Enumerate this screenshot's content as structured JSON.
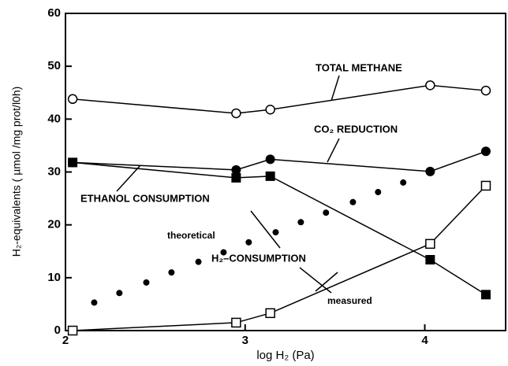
{
  "chart_data": {
    "type": "line",
    "x_label": "log H₂  (Pa)",
    "y_label": "H₂-equivalents ( µmol /mg prot/l0h)",
    "xlim": [
      2,
      4.45
    ],
    "xticks": [
      2,
      3,
      4
    ],
    "ylim": [
      0,
      60
    ],
    "yticks": [
      0,
      10,
      20,
      30,
      40,
      50,
      60
    ],
    "series": [
      {
        "name": "TOTAL METHANE",
        "color": "#000000",
        "marker": "open-circle",
        "line": true,
        "x": [
          2.04,
          2.95,
          3.14,
          4.03,
          4.34
        ],
        "values": [
          43.8,
          41.1,
          41.8,
          46.4,
          45.4
        ]
      },
      {
        "name": "CO₂ REDUCTION",
        "color": "#000000",
        "marker": "filled-circle",
        "line": true,
        "x": [
          2.04,
          2.95,
          3.14,
          4.03,
          4.34
        ],
        "values": [
          31.8,
          30.4,
          32.4,
          30.1,
          33.9
        ]
      },
      {
        "name": "ETHANOL CONSUMPTION",
        "color": "#000000",
        "marker": "filled-square",
        "line": true,
        "x": [
          2.04,
          2.95,
          3.14,
          4.03,
          4.34
        ],
        "values": [
          31.8,
          28.9,
          29.2,
          13.4,
          6.8
        ]
      },
      {
        "name": "measured",
        "color": "#000000",
        "marker": "open-square",
        "line": true,
        "x": [
          2.04,
          2.95,
          3.14,
          4.03,
          4.34
        ],
        "values": [
          0,
          1.5,
          3.3,
          16.4,
          27.4
        ]
      },
      {
        "name": "theoretical",
        "color": "#000000",
        "marker": "dot",
        "line": false,
        "x": [
          2.16,
          2.3,
          2.45,
          2.59,
          2.74,
          2.88,
          3.02,
          3.17,
          3.31,
          3.45,
          3.6,
          3.74,
          3.88,
          4.03
        ],
        "values": [
          5.3,
          7.1,
          9.1,
          11.0,
          13.0,
          14.8,
          16.7,
          18.6,
          20.5,
          22.3,
          24.3,
          26.2,
          28.0,
          30.0
        ]
      }
    ],
    "annotation": "H₂–CONSUMPTION"
  }
}
